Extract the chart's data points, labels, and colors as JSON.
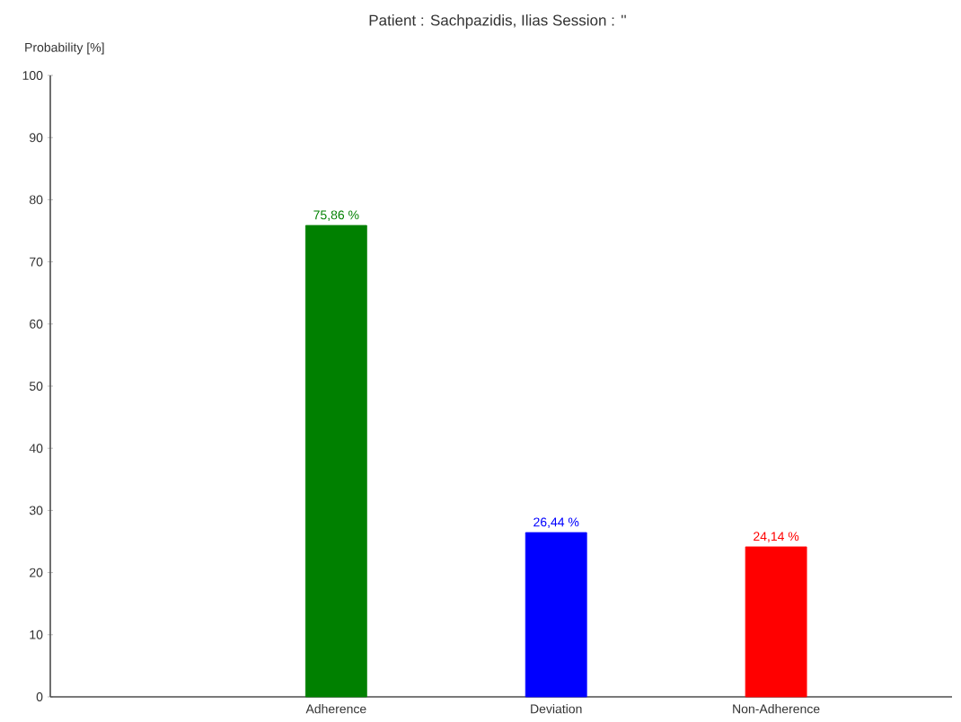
{
  "chart_data": {
    "type": "bar",
    "title": "Patient : Sachpazidis, Ilias   Session : ''",
    "ylabel": "Probability [%]",
    "categories": [
      "Adherence",
      "Deviation",
      "Non-Adherence"
    ],
    "values": [
      75.86,
      26.44,
      24.14
    ],
    "colors": [
      "#008000",
      "#0000ff",
      "#ff0000"
    ],
    "value_labels": [
      "75,86 %",
      "26,44 %",
      "24,14 %"
    ],
    "ylim": [
      0,
      100
    ],
    "yticks": [
      0,
      10,
      20,
      30,
      40,
      50,
      60,
      70,
      80,
      90,
      100
    ],
    "grid": false
  }
}
